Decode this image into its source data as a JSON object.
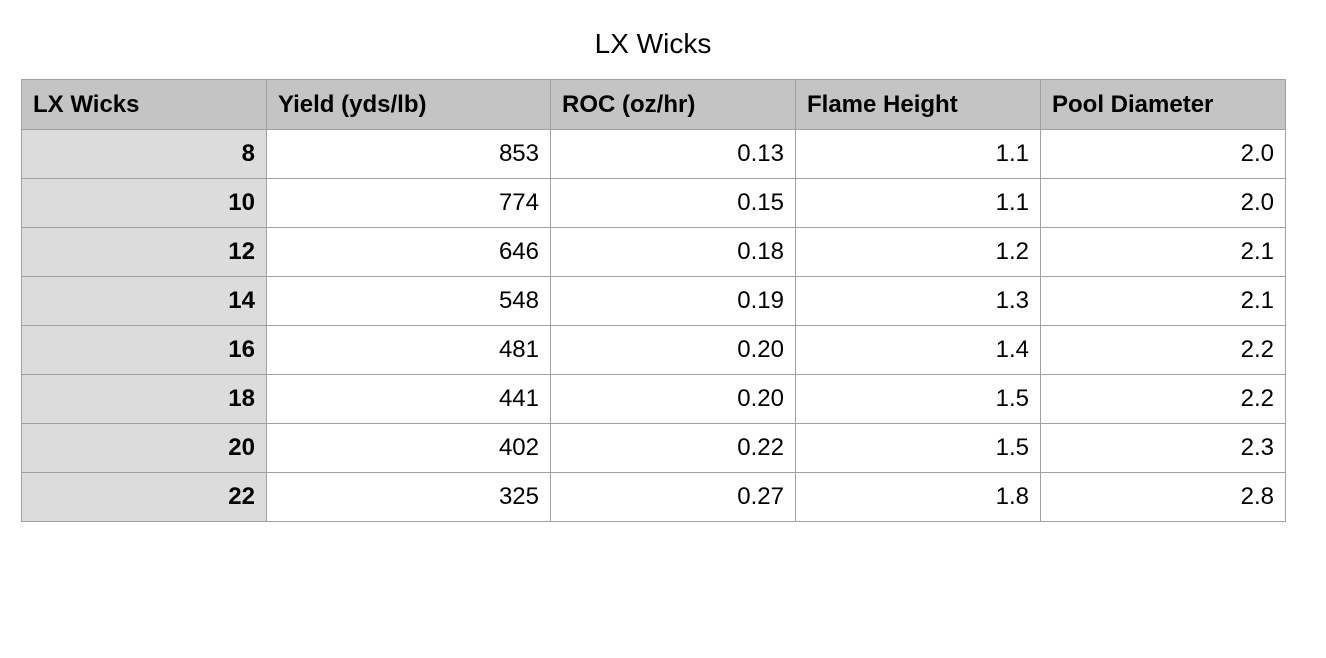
{
  "header": {
    "title": "LX Wicks"
  },
  "table": {
    "columns": [
      "LX Wicks",
      "Yield (yds/lb)",
      "ROC (oz/hr)",
      "Flame Height",
      "Pool Diameter"
    ],
    "rows": [
      [
        "8",
        "853",
        "0.13",
        "1.1",
        "2.0"
      ],
      [
        "10",
        "774",
        "0.15",
        "1.1",
        "2.0"
      ],
      [
        "12",
        "646",
        "0.18",
        "1.2",
        "2.1"
      ],
      [
        "14",
        "548",
        "0.19",
        "1.3",
        "2.1"
      ],
      [
        "16",
        "481",
        "0.20",
        "1.4",
        "2.2"
      ],
      [
        "18",
        "441",
        "0.20",
        "1.5",
        "2.2"
      ],
      [
        "20",
        "402",
        "0.22",
        "1.5",
        "2.3"
      ],
      [
        "22",
        "325",
        "0.27",
        "1.8",
        "2.8"
      ]
    ]
  }
}
